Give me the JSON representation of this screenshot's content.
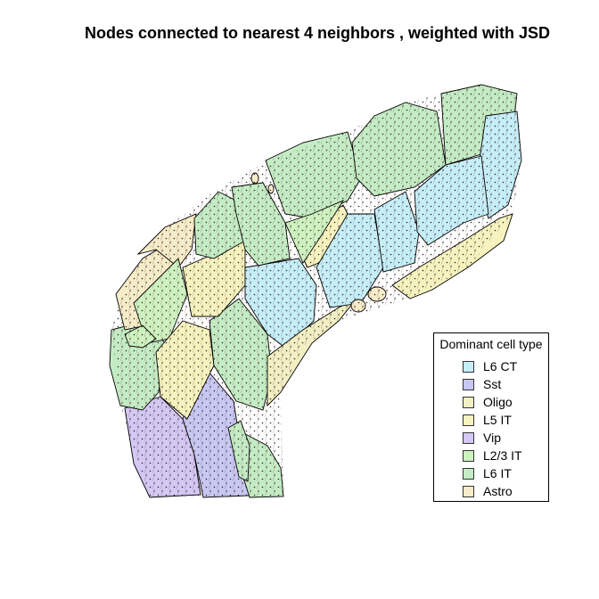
{
  "title": "Nodes connected to nearest 4 neighbors , weighted with JSD",
  "legend": {
    "title": "Dominant cell type",
    "items": [
      {
        "label": "L6 CT",
        "color": "#c6eef8"
      },
      {
        "label": "Sst",
        "color": "#c8c8f2"
      },
      {
        "label": "Oligo",
        "color": "#f2efc3"
      },
      {
        "label": "L5 IT",
        "color": "#f6f3bf"
      },
      {
        "label": "Vip",
        "color": "#d4c8f4"
      },
      {
        "label": "L2/3 IT",
        "color": "#cdf2c0"
      },
      {
        "label": "L6 IT",
        "color": "#c4ecc4"
      },
      {
        "label": "Astro",
        "color": "#f6ecc8"
      }
    ]
  }
}
